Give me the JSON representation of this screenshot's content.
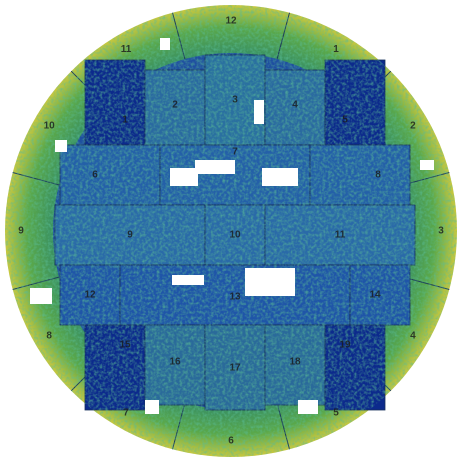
{
  "outer_segments": [
    "12",
    "1",
    "2",
    "3",
    "4",
    "5",
    "6",
    "7",
    "8",
    "9",
    "10",
    "11"
  ],
  "inner_modules": [
    "1",
    "2",
    "3",
    "4",
    "5",
    "6",
    "7",
    "8",
    "9",
    "10",
    "11",
    "12",
    "13",
    "14",
    "15",
    "16",
    "17",
    "18",
    "19"
  ]
}
